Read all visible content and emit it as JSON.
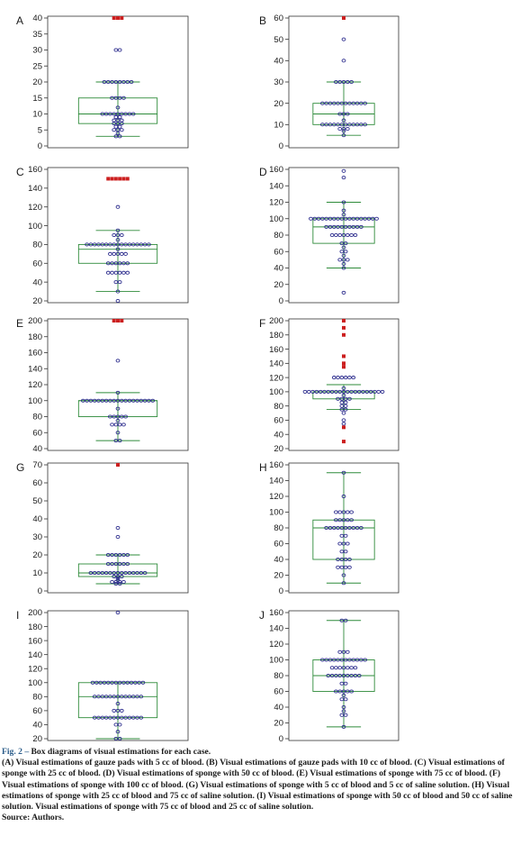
{
  "colors": {
    "box": "#2e8b3a",
    "point": "#2a2a8c",
    "outlier": "#cc1f1f",
    "frame": "#333333",
    "text": "#1a1a1a",
    "fig_label": "#2b5c8a"
  },
  "chart_data": [
    {
      "id": "A",
      "panel_label": "A",
      "type": "box",
      "ylim": [
        0,
        40
      ],
      "yticks": [
        0,
        5,
        10,
        15,
        20,
        25,
        30,
        35,
        40
      ],
      "box": {
        "whisker_low": 3,
        "q1": 7,
        "median": 10,
        "q3": 15,
        "whisker_high": 20
      },
      "points": [
        3,
        3,
        4,
        5,
        5,
        5,
        6,
        6,
        7,
        7,
        7,
        8,
        8,
        8,
        9,
        9,
        10,
        10,
        10,
        10,
        10,
        10,
        10,
        10,
        10,
        12,
        15,
        15,
        15,
        15,
        20,
        20,
        20,
        20,
        20,
        20,
        20,
        20,
        30,
        30
      ],
      "outliers": [
        40,
        40,
        40
      ]
    },
    {
      "id": "B",
      "panel_label": "B",
      "type": "box",
      "ylim": [
        0,
        60
      ],
      "yticks": [
        0,
        10,
        20,
        30,
        40,
        50,
        60
      ],
      "box": {
        "whisker_low": 5,
        "q1": 10,
        "median": 15,
        "q3": 20,
        "whisker_high": 30
      },
      "points": [
        5,
        7,
        8,
        8,
        8,
        10,
        10,
        10,
        10,
        10,
        10,
        10,
        10,
        10,
        10,
        10,
        10,
        12,
        15,
        15,
        15,
        20,
        20,
        20,
        20,
        20,
        20,
        20,
        20,
        20,
        20,
        20,
        20,
        30,
        30,
        30,
        30,
        30,
        40,
        50
      ],
      "outliers": [
        60
      ]
    },
    {
      "id": "C",
      "panel_label": "C",
      "type": "box",
      "ylim": [
        20,
        160
      ],
      "yticks": [
        20,
        40,
        60,
        80,
        100,
        120,
        140,
        160
      ],
      "box": {
        "whisker_low": 30,
        "q1": 60,
        "median": 75,
        "q3": 80,
        "whisker_high": 95
      },
      "points": [
        20,
        30,
        40,
        40,
        50,
        50,
        50,
        50,
        50,
        50,
        60,
        60,
        60,
        60,
        60,
        60,
        70,
        70,
        70,
        70,
        70,
        75,
        80,
        80,
        80,
        80,
        80,
        80,
        80,
        80,
        80,
        80,
        80,
        80,
        80,
        80,
        80,
        80,
        80,
        85,
        90,
        90,
        90,
        95,
        120
      ],
      "outliers": [
        150,
        150,
        150,
        150,
        150,
        150
      ]
    },
    {
      "id": "D",
      "panel_label": "D",
      "type": "box",
      "ylim": [
        0,
        160
      ],
      "yticks": [
        0,
        20,
        40,
        60,
        80,
        100,
        120,
        140,
        160
      ],
      "box": {
        "whisker_low": 40,
        "q1": 70,
        "median": 90,
        "q3": 100,
        "whisker_high": 120
      },
      "points": [
        10,
        40,
        45,
        50,
        50,
        50,
        55,
        60,
        60,
        65,
        70,
        70,
        80,
        80,
        80,
        80,
        80,
        80,
        80,
        90,
        90,
        90,
        90,
        90,
        90,
        90,
        90,
        90,
        90,
        100,
        100,
        100,
        100,
        100,
        100,
        100,
        100,
        100,
        100,
        100,
        100,
        100,
        100,
        100,
        100,
        100,
        100,
        105,
        110,
        120,
        150,
        158
      ],
      "outliers": []
    },
    {
      "id": "E",
      "panel_label": "E",
      "type": "box",
      "ylim": [
        40,
        200
      ],
      "yticks": [
        40,
        60,
        80,
        100,
        120,
        140,
        160,
        180,
        200
      ],
      "box": {
        "whisker_low": 50,
        "q1": 80,
        "median": 100,
        "q3": 100,
        "whisker_high": 110
      },
      "points": [
        50,
        50,
        60,
        70,
        70,
        70,
        70,
        75,
        80,
        80,
        80,
        80,
        80,
        90,
        100,
        100,
        100,
        100,
        100,
        100,
        100,
        100,
        100,
        100,
        100,
        100,
        100,
        100,
        100,
        100,
        100,
        100,
        100,
        110,
        150
      ],
      "outliers": [
        200,
        200,
        200
      ]
    },
    {
      "id": "F",
      "panel_label": "F",
      "type": "box",
      "ylim": [
        20,
        200
      ],
      "yticks": [
        20,
        40,
        60,
        80,
        100,
        120,
        140,
        160,
        180,
        200
      ],
      "box": {
        "whisker_low": 75,
        "q1": 90,
        "median": 100,
        "q3": 100,
        "whisker_high": 110
      },
      "points": [
        55,
        60,
        70,
        75,
        75,
        80,
        80,
        85,
        85,
        90,
        90,
        90,
        90,
        95,
        100,
        100,
        100,
        100,
        100,
        100,
        100,
        100,
        100,
        100,
        100,
        100,
        100,
        100,
        100,
        100,
        100,
        100,
        100,
        100,
        100,
        105,
        120,
        120,
        120,
        120,
        120,
        120
      ],
      "outliers": [
        30,
        50,
        135,
        140,
        150,
        180,
        190,
        200
      ]
    },
    {
      "id": "G",
      "panel_label": "G",
      "type": "box",
      "ylim": [
        0,
        70
      ],
      "yticks": [
        0,
        10,
        20,
        30,
        40,
        50,
        60,
        70
      ],
      "box": {
        "whisker_low": 4,
        "q1": 8,
        "median": 10,
        "q3": 15,
        "whisker_high": 20
      },
      "points": [
        4,
        4,
        5,
        5,
        5,
        5,
        6,
        7,
        8,
        8,
        8,
        10,
        10,
        10,
        10,
        10,
        10,
        10,
        10,
        10,
        10,
        10,
        10,
        10,
        10,
        10,
        15,
        15,
        15,
        15,
        15,
        15,
        20,
        20,
        20,
        20,
        20,
        20,
        30,
        35
      ],
      "outliers": [
        70
      ]
    },
    {
      "id": "H",
      "panel_label": "H",
      "type": "box",
      "ylim": [
        0,
        160
      ],
      "yticks": [
        0,
        20,
        40,
        60,
        80,
        100,
        120,
        140,
        160
      ],
      "box": {
        "whisker_low": 10,
        "q1": 40,
        "median": 80,
        "q3": 90,
        "whisker_high": 150
      },
      "points": [
        10,
        20,
        30,
        30,
        30,
        30,
        40,
        40,
        40,
        40,
        50,
        50,
        60,
        60,
        60,
        70,
        70,
        80,
        80,
        80,
        80,
        80,
        80,
        80,
        80,
        80,
        80,
        90,
        90,
        90,
        90,
        90,
        100,
        100,
        100,
        100,
        100,
        120,
        150
      ],
      "outliers": []
    },
    {
      "id": "I",
      "panel_label": "I",
      "type": "box",
      "ylim": [
        20,
        200
      ],
      "yticks": [
        20,
        40,
        60,
        80,
        100,
        120,
        140,
        160,
        180,
        200
      ],
      "box": {
        "whisker_low": 20,
        "q1": 50,
        "median": 80,
        "q3": 100,
        "whisker_high": 100
      },
      "points": [
        20,
        20,
        30,
        40,
        40,
        50,
        50,
        50,
        50,
        50,
        50,
        50,
        50,
        50,
        50,
        50,
        50,
        50,
        60,
        60,
        60,
        70,
        80,
        80,
        80,
        80,
        80,
        80,
        80,
        80,
        80,
        80,
        80,
        80,
        80,
        100,
        100,
        100,
        100,
        100,
        100,
        100,
        100,
        100,
        100,
        100,
        100,
        100,
        100,
        200
      ],
      "outliers": []
    },
    {
      "id": "J",
      "panel_label": "J",
      "type": "box",
      "ylim": [
        0,
        160
      ],
      "yticks": [
        0,
        20,
        40,
        60,
        80,
        100,
        120,
        140,
        160
      ],
      "box": {
        "whisker_low": 15,
        "q1": 60,
        "median": 80,
        "q3": 100,
        "whisker_high": 150
      },
      "points": [
        15,
        30,
        30,
        35,
        40,
        50,
        50,
        55,
        60,
        60,
        60,
        60,
        60,
        70,
        70,
        80,
        80,
        80,
        80,
        80,
        80,
        80,
        80,
        80,
        90,
        90,
        90,
        90,
        90,
        90,
        90,
        100,
        100,
        100,
        100,
        100,
        100,
        100,
        100,
        100,
        100,
        100,
        100,
        110,
        110,
        110,
        150,
        150
      ],
      "outliers": []
    }
  ],
  "caption": {
    "fig_label": "Fig. 2 –",
    "fig_title": "Box diagrams of visual estimations for each case.",
    "body": "(A) Visual estimations of gauze pads with 5 cc of blood. (B) Visual estimations of gauze pads with 10 cc of blood. (C) Visual estimations of sponge with 25 cc of blood. (D) Visual estimations of sponge with 50 cc of blood. (E) Visual estimations of sponge with 75 cc of blood. (F) Visual estimations of sponge with 100 cc of blood. (G) Visual estimations of sponge with 5 cc of blood and 5 cc of saline solution. (H) Visual estimations of sponge with 25 cc of blood and 75 cc of saline solution. (I) Visual estimations of sponge with 50 cc of blood and 50 cc of saline solution. Visual estimations of sponge with 75 cc of blood and 25 cc of saline solution.",
    "source": "Source: Authors."
  }
}
